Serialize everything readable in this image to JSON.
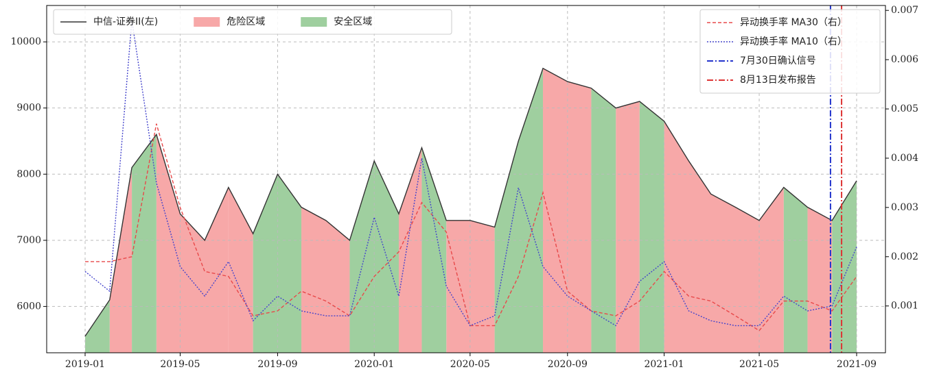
{
  "chart_data": {
    "type": "line",
    "x": [
      "2019-01",
      "2019-02",
      "2019-03",
      "2019-04",
      "2019-05",
      "2019-06",
      "2019-07",
      "2019-08",
      "2019-09",
      "2019-10",
      "2019-11",
      "2019-12",
      "2020-01",
      "2020-02",
      "2020-03",
      "2020-04",
      "2020-05",
      "2020-06",
      "2020-07",
      "2020-08",
      "2020-09",
      "2020-10",
      "2020-11",
      "2020-12",
      "2021-01",
      "2021-02",
      "2021-03",
      "2021-04",
      "2021-05",
      "2021-06",
      "2021-07",
      "2021-08",
      "2021-09"
    ],
    "xticks": [
      "2019-01",
      "2019-05",
      "2019-09",
      "2020-01",
      "2020-05",
      "2020-09",
      "2021-01",
      "2021-05",
      "2021-09"
    ],
    "ylim": [
      5300,
      10550
    ],
    "yticks": [
      6000,
      7000,
      8000,
      9000,
      10000
    ],
    "y2lim": [
      5e-05,
      0.0071
    ],
    "y2ticks": [
      0.001,
      0.002,
      0.003,
      0.004,
      0.005,
      0.006,
      0.007
    ],
    "grid": true,
    "series": [
      {
        "name": "中信-证券II(左)",
        "color": "#333333",
        "linestyle": "-",
        "values": [
          5550,
          6100,
          8100,
          8600,
          7400,
          7000,
          7800,
          7100,
          8000,
          7500,
          7300,
          7000,
          8200,
          7400,
          8400,
          7300,
          7300,
          7200,
          8500,
          9600,
          9400,
          9300,
          9000,
          9100,
          8800,
          8200,
          7700,
          7500,
          7300,
          7800,
          7500,
          7300,
          7900
        ]
      },
      {
        "name": "异动换手率 MA30（右）",
        "color": "#e8494a",
        "linestyle": "--",
        "axis": "y2",
        "values": [
          0.0019,
          0.0019,
          0.002,
          0.0047,
          0.003,
          0.0017,
          0.0016,
          0.0008,
          0.0009,
          0.0013,
          0.0011,
          0.0008,
          0.0016,
          0.0021,
          0.0031,
          0.0025,
          0.0006,
          0.0006,
          0.0016,
          0.0033,
          0.0013,
          0.0009,
          0.0008,
          0.0011,
          0.0017,
          0.0012,
          0.0011,
          0.0008,
          0.0005,
          0.0011,
          0.0011,
          0.0009,
          0.0016
        ]
      },
      {
        "name": "异动换手率 MA10（右）",
        "color": "#4444cc",
        "linestyle": ":",
        "axis": "y2",
        "values": [
          0.0017,
          0.0013,
          0.0068,
          0.0035,
          0.0018,
          0.0012,
          0.0019,
          0.0007,
          0.0012,
          0.0009,
          0.0008,
          0.0008,
          0.0028,
          0.0012,
          0.004,
          0.0014,
          0.0006,
          0.0008,
          0.0034,
          0.0018,
          0.0012,
          0.0009,
          0.0006,
          0.0015,
          0.0019,
          0.0009,
          0.0007,
          0.0006,
          0.0006,
          0.0012,
          0.0009,
          0.001,
          0.0022
        ]
      }
    ],
    "vlines": [
      {
        "name": "7月30日确认信号",
        "x": "2021-07-30",
        "color": "#2233cc",
        "linestyle": "-."
      },
      {
        "name": "8月13日发布报告",
        "x": "2021-08-13",
        "color": "#dd3333",
        "linestyle": "-."
      }
    ],
    "areas": [
      {
        "name": "危险区域",
        "color": "#f7a8a8",
        "spans": [
          [
            "2019-02",
            "2019-03"
          ],
          [
            "2019-04",
            "2019-07"
          ],
          [
            "2019-07",
            "2019-08"
          ],
          [
            "2019-10",
            "2019-12"
          ],
          [
            "2020-02",
            "2020-03"
          ],
          [
            "2020-04",
            "2020-06"
          ],
          [
            "2020-08",
            "2020-10"
          ],
          [
            "2020-11",
            "2020-12"
          ],
          [
            "2021-01",
            "2021-06"
          ],
          [
            "2021-07",
            "2021-08"
          ]
        ]
      },
      {
        "name": "安全区域",
        "color": "#9fcf9f",
        "spans": [
          [
            "2019-01",
            "2019-02"
          ],
          [
            "2019-03",
            "2019-04"
          ],
          [
            "2019-08",
            "2019-10"
          ],
          [
            "2019-12",
            "2020-02"
          ],
          [
            "2020-03",
            "2020-04"
          ],
          [
            "2020-06",
            "2020-08"
          ],
          [
            "2020-10",
            "2020-11"
          ],
          [
            "2020-12",
            "2021-01"
          ],
          [
            "2021-06",
            "2021-07"
          ],
          [
            "2021-08",
            "2021-09"
          ]
        ]
      }
    ],
    "legend": "upper left",
    "legend2": "upper right"
  }
}
